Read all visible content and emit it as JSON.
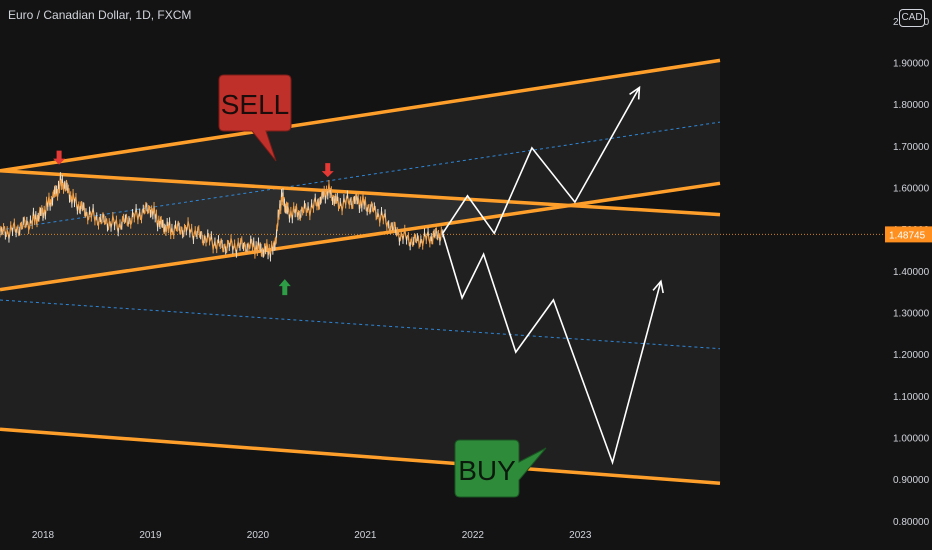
{
  "header": {
    "title": "Euro / Canadian Dollar, 1D, FXCM",
    "currency": "CAD"
  },
  "colors": {
    "background": "#131313",
    "channel": "#ff9f2b",
    "midline": "#2f86d6",
    "price": "#f0a24c",
    "sell": "#c0302a",
    "buy": "#2e8b3a",
    "projection": "#ffffff",
    "axis_text": "#d1d4dc"
  },
  "annotations": {
    "sell_label": "SELL",
    "buy_label": "BUY",
    "down_arrows": [
      {
        "x": 2018.15,
        "y": 1.655
      },
      {
        "x": 2020.65,
        "y": 1.625
      }
    ],
    "up_arrows": [
      {
        "x": 2020.25,
        "y": 1.38
      }
    ]
  },
  "chart_data": {
    "type": "line",
    "title": "Euro / Canadian Dollar, 1D, FXCM",
    "xlabel": "",
    "ylabel": "",
    "xlim": [
      2017.6,
      2024.3
    ],
    "ylim": [
      0.73,
      2.05
    ],
    "x_ticks": [
      "2018",
      "2019",
      "2020",
      "2021",
      "2022",
      "2023"
    ],
    "x_tick_values": [
      2018.0,
      2019.0,
      2020.0,
      2021.0,
      2022.0,
      2023.0
    ],
    "y_ticks": [
      "0.80000",
      "0.90000",
      "1.00000",
      "1.10000",
      "1.20000",
      "1.30000",
      "1.40000",
      "1.50000",
      "1.60000",
      "1.70000",
      "1.80000",
      "1.90000",
      "2.00000"
    ],
    "y_tick_values": [
      0.8,
      0.9,
      1.0,
      1.1,
      1.2,
      1.3,
      1.4,
      1.5,
      1.6,
      1.7,
      1.8,
      1.9,
      2.0
    ],
    "last_price": "1.48745",
    "last_price_value": 1.48745,
    "grid": false,
    "series": [
      {
        "name": "EUR/CAD",
        "points": [
          [
            2017.6,
            1.49
          ],
          [
            2017.75,
            1.5
          ],
          [
            2017.9,
            1.52
          ],
          [
            2018.0,
            1.54
          ],
          [
            2018.1,
            1.58
          ],
          [
            2018.18,
            1.615
          ],
          [
            2018.28,
            1.57
          ],
          [
            2018.4,
            1.54
          ],
          [
            2018.55,
            1.52
          ],
          [
            2018.7,
            1.51
          ],
          [
            2018.85,
            1.53
          ],
          [
            2019.0,
            1.55
          ],
          [
            2019.1,
            1.51
          ],
          [
            2019.2,
            1.5
          ],
          [
            2019.35,
            1.5
          ],
          [
            2019.5,
            1.48
          ],
          [
            2019.65,
            1.46
          ],
          [
            2019.8,
            1.46
          ],
          [
            2019.95,
            1.46
          ],
          [
            2020.05,
            1.45
          ],
          [
            2020.15,
            1.45
          ],
          [
            2020.22,
            1.58
          ],
          [
            2020.28,
            1.54
          ],
          [
            2020.4,
            1.54
          ],
          [
            2020.55,
            1.56
          ],
          [
            2020.65,
            1.595
          ],
          [
            2020.75,
            1.56
          ],
          [
            2020.9,
            1.57
          ],
          [
            2021.0,
            1.56
          ],
          [
            2021.15,
            1.53
          ],
          [
            2021.3,
            1.49
          ],
          [
            2021.45,
            1.47
          ],
          [
            2021.6,
            1.48
          ],
          [
            2021.72,
            1.49
          ]
        ]
      }
    ],
    "channels": [
      {
        "name": "upper_rising",
        "upper": [
          [
            2017.6,
            1.64
          ],
          [
            2024.3,
            1.905
          ]
        ],
        "lower": [
          [
            2017.6,
            1.355
          ],
          [
            2024.3,
            1.61
          ]
        ],
        "midline": [
          [
            2017.6,
            1.498
          ],
          [
            2024.3,
            1.757
          ]
        ]
      },
      {
        "name": "lower_falling",
        "upper": [
          [
            2017.6,
            1.64
          ],
          [
            2024.3,
            1.535
          ]
        ],
        "lower": [
          [
            2017.6,
            1.02
          ],
          [
            2024.3,
            0.89
          ]
        ],
        "midline": [
          [
            2017.6,
            1.33
          ],
          [
            2024.3,
            1.213
          ]
        ]
      }
    ],
    "projections": [
      {
        "name": "bullish_path",
        "points": [
          [
            2021.72,
            1.49
          ],
          [
            2021.95,
            1.58
          ],
          [
            2022.2,
            1.49
          ],
          [
            2022.55,
            1.695
          ],
          [
            2022.95,
            1.565
          ],
          [
            2023.55,
            1.84
          ]
        ]
      },
      {
        "name": "bearish_path",
        "points": [
          [
            2021.72,
            1.49
          ],
          [
            2021.9,
            1.335
          ],
          [
            2022.1,
            1.44
          ],
          [
            2022.4,
            1.205
          ],
          [
            2022.75,
            1.33
          ],
          [
            2023.3,
            0.94
          ],
          [
            2023.75,
            1.375
          ]
        ]
      }
    ]
  }
}
